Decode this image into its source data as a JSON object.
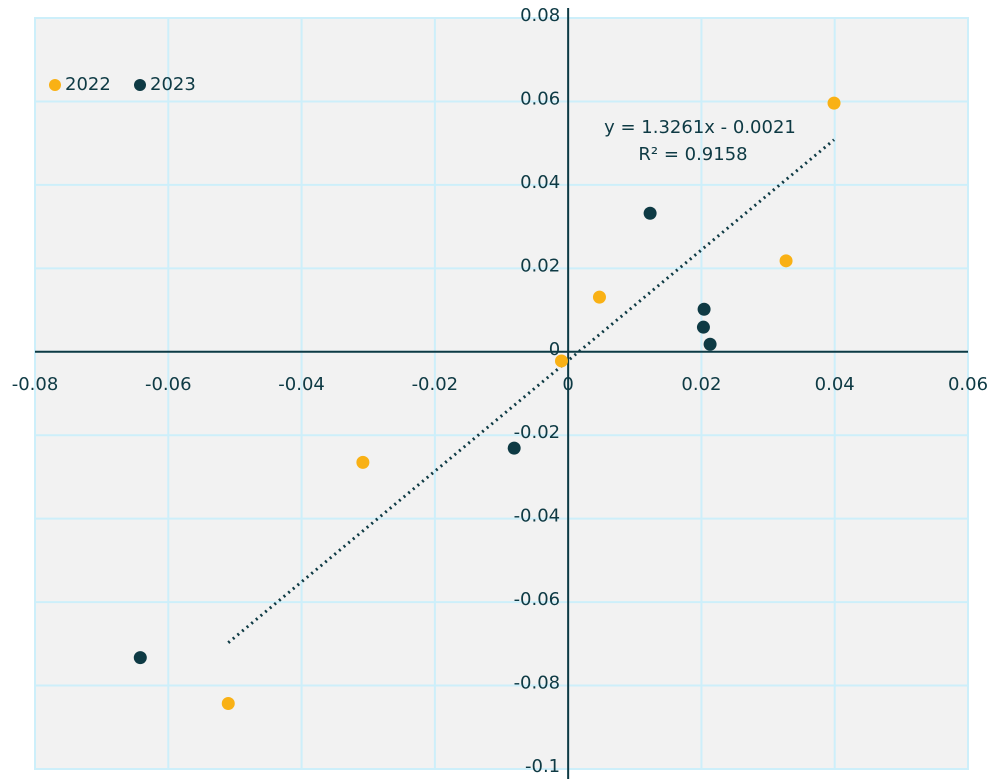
{
  "chart_data": {
    "type": "scatter",
    "series": [
      {
        "name": "2022",
        "color": "#f9b115",
        "x": [
          -0.051,
          -0.0308,
          -0.001,
          0.0047,
          0.0327,
          0.0399
        ],
        "values": [
          -0.0843,
          -0.0265,
          -0.0022,
          0.0131,
          0.0218,
          0.0596
        ]
      },
      {
        "name": "2023",
        "color": "#0e3a44",
        "x": [
          -0.0642,
          -0.0081,
          0.0123,
          0.0204,
          0.0203,
          0.0213
        ],
        "values": [
          -0.0733,
          -0.0231,
          0.0332,
          0.0102,
          0.0059,
          0.0018
        ]
      }
    ],
    "trendline": {
      "slope": 1.3261,
      "intercept": -0.0021,
      "x_range": [
        -0.051,
        0.0399
      ],
      "equation": "y = 1.3261x - 0.0021",
      "r_squared": "R² = 0.9158"
    },
    "xlim": [
      -0.08,
      0.06
    ],
    "xticks": [
      -0.08,
      -0.06,
      -0.04,
      -0.02,
      0,
      0.02,
      0.04,
      0.06
    ],
    "ylim": [
      -0.1,
      0.08
    ],
    "yticks": [
      -0.1,
      -0.08,
      -0.06,
      -0.04,
      -0.02,
      0,
      0.02,
      0.04,
      0.06,
      0.08
    ],
    "grid": true,
    "legend": "top-left"
  }
}
